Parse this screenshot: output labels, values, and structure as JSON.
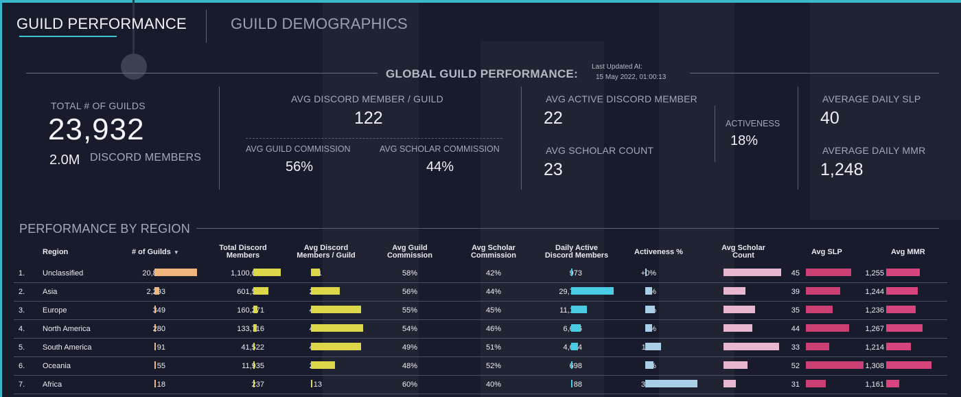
{
  "tabs": [
    {
      "label": "GUILD PERFORMANCE",
      "active": true
    },
    {
      "label": "GUILD DEMOGRAPHICS",
      "active": false
    }
  ],
  "global": {
    "title": "GLOBAL GUILD PERFORMANCE:",
    "updated_label": "Last Updated At:",
    "updated_value": "15 May 2022, 01:00:13"
  },
  "kpis": {
    "total_guilds_label": "TOTAL # OF GUILDS",
    "total_guilds_value": "23,932",
    "discord_members_value": "2.0M",
    "discord_members_label": "DISCORD MEMBERS",
    "avg_discord_member_label": "AVG DISCORD MEMBER / GUILD",
    "avg_discord_member_value": "122",
    "avg_guild_commission_label": "AVG GUILD COMMISSION",
    "avg_guild_commission_value": "56%",
    "avg_scholar_commission_label": "AVG SCHOLAR COMMISSION",
    "avg_scholar_commission_value": "44%",
    "avg_active_label": "AVG ACTIVE DISCORD MEMBER",
    "avg_active_value": "22",
    "activeness_label": "ACTIVENESS",
    "activeness_value": "18%",
    "avg_scholar_count_label": "AVG SCHOLAR COUNT",
    "avg_scholar_count_value": "23",
    "avg_daily_slp_label": "AVERAGE DAILY SLP",
    "avg_daily_slp_value": "40",
    "avg_daily_mmr_label": "AVERAGE DAILY MMR",
    "avg_daily_mmr_value": "1,248"
  },
  "region": {
    "title": "PERFORMANCE BY REGION",
    "headers": {
      "region": "Region",
      "guilds": "# of Guilds",
      "total_members_1": "Total Discord",
      "total_members_2": "Members",
      "avg_members_1": "Avg Discord",
      "avg_members_2": "Members / Guild",
      "guild_comm_1": "Avg Guild",
      "guild_comm_2": "Commission",
      "scholar_comm_1": "Avg Scholar",
      "scholar_comm_2": "Commission",
      "daily_active_1": "Daily Active",
      "daily_active_2": "Discord Members",
      "activeness": "Activeness %",
      "scholar_count_1": "Avg Scholar",
      "scholar_count_2": "Count",
      "slp": "Avg SLP",
      "mmr": "Avg MMR"
    },
    "rows": [
      {
        "idx": "1.",
        "region": "Unclassified",
        "guilds": "20,846",
        "guilds_n": 20846,
        "members": "1,100,685",
        "members_n": 1100685,
        "avg_members": "81",
        "avg_members_n": 81,
        "guild_comm": "58%",
        "scholar_comm": "42%",
        "daily_active": "973",
        "daily_active_n": 973,
        "activeness": "+0%",
        "activeness_n": 0,
        "scholar_count": "24",
        "scholar_count_n": 24,
        "slp": "45",
        "slp_n": 45,
        "mmr": "1,255",
        "mmr_n": 1255
      },
      {
        "idx": "2.",
        "region": "Asia",
        "guilds": "2,293",
        "guilds_n": 2293,
        "members": "601,531",
        "members_n": 601531,
        "avg_members": "263",
        "avg_members_n": 263,
        "guild_comm": "56%",
        "scholar_comm": "44%",
        "daily_active": "29,767",
        "daily_active_n": 29767,
        "activeness": "5%",
        "activeness_n": 5,
        "scholar_count": "9",
        "scholar_count_n": 9,
        "slp": "39",
        "slp_n": 39,
        "mmr": "1,244",
        "mmr_n": 1244
      },
      {
        "idx": "3.",
        "region": "Europe",
        "guilds": "349",
        "guilds_n": 349,
        "members": "160,271",
        "members_n": 160271,
        "avg_members": "459",
        "avg_members_n": 459,
        "guild_comm": "55%",
        "scholar_comm": "45%",
        "daily_active": "11,104",
        "daily_active_n": 11104,
        "activeness": "7%",
        "activeness_n": 7,
        "scholar_count": "13",
        "scholar_count_n": 13,
        "slp": "35",
        "slp_n": 35,
        "mmr": "1,236",
        "mmr_n": 1236
      },
      {
        "idx": "4.",
        "region": "North America",
        "guilds": "280",
        "guilds_n": 280,
        "members": "133,716",
        "members_n": 133716,
        "avg_members": "478",
        "avg_members_n": 478,
        "guild_comm": "54%",
        "scholar_comm": "46%",
        "daily_active": "6,636",
        "daily_active_n": 6636,
        "activeness": "5%",
        "activeness_n": 5,
        "scholar_count": "12",
        "scholar_count_n": 12,
        "slp": "44",
        "slp_n": 44,
        "mmr": "1,267",
        "mmr_n": 1267
      },
      {
        "idx": "5.",
        "region": "South America",
        "guilds": "91",
        "guilds_n": 91,
        "members": "41,522",
        "members_n": 41522,
        "avg_members": "456",
        "avg_members_n": 456,
        "guild_comm": "49%",
        "scholar_comm": "51%",
        "daily_active": "4,634",
        "daily_active_n": 4634,
        "activeness": "11%",
        "activeness_n": 11,
        "scholar_count": "23",
        "scholar_count_n": 23,
        "slp": "33",
        "slp_n": 33,
        "mmr": "1,214",
        "mmr_n": 1214
      },
      {
        "idx": "6.",
        "region": "Oceania",
        "guilds": "55",
        "guilds_n": 55,
        "members": "11,935",
        "members_n": 11935,
        "avg_members": "217",
        "avg_members_n": 217,
        "guild_comm": "48%",
        "scholar_comm": "52%",
        "daily_active": "698",
        "daily_active_n": 698,
        "activeness": "6%",
        "activeness_n": 6,
        "scholar_count": "10",
        "scholar_count_n": 10,
        "slp": "52",
        "slp_n": 52,
        "mmr": "1,308",
        "mmr_n": 1308
      },
      {
        "idx": "7.",
        "region": "Africa",
        "guilds": "18",
        "guilds_n": 18,
        "members": "237",
        "members_n": 237,
        "avg_members": "13",
        "avg_members_n": 13,
        "guild_comm": "60%",
        "scholar_comm": "40%",
        "daily_active": "88",
        "daily_active_n": 88,
        "activeness": "37%",
        "activeness_n": 37,
        "scholar_count": "5",
        "scholar_count_n": 5,
        "slp": "31",
        "slp_n": 31,
        "mmr": "1,161",
        "mmr_n": 1161
      }
    ]
  },
  "colors": {
    "accent": "#38b8c9",
    "bar_guilds": "#f2b57e",
    "bar_yellow": "#dcd84a",
    "bar_cyan": "#49cbe4",
    "bar_activeness": "#a9cfe6",
    "bar_scholar": "#e7b7cf",
    "bar_slp": "#cc3f72",
    "bar_mmr": "#d8457c"
  }
}
